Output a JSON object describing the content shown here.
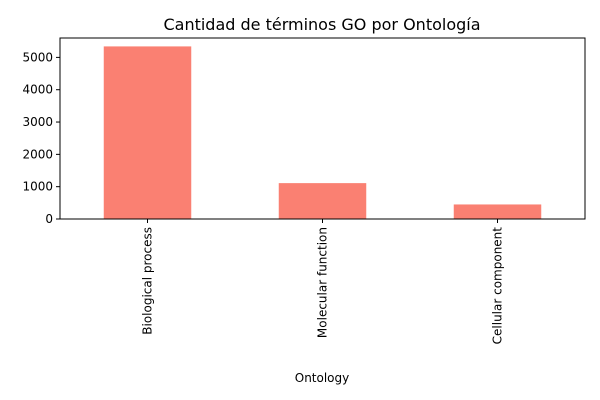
{
  "chart_data": {
    "type": "bar",
    "title": "Cantidad de términos GO por Ontología",
    "xlabel": "Ontology",
    "ylabel": "",
    "categories": [
      "Biological process",
      "Molecular function",
      "Cellular component"
    ],
    "values": [
      5340,
      1110,
      450
    ],
    "ylim": [
      0,
      5600
    ],
    "yticks": [
      0,
      1000,
      2000,
      3000,
      4000,
      5000
    ],
    "bar_color": "#fa8072",
    "grid": false,
    "legend": false
  }
}
